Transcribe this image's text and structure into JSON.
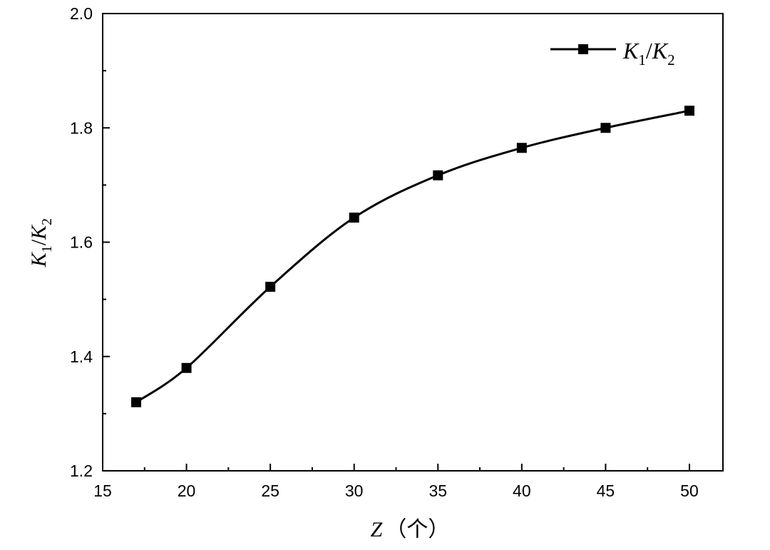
{
  "chart_data": {
    "type": "line",
    "x": [
      17,
      20,
      25,
      30,
      35,
      40,
      45,
      50
    ],
    "series": [
      {
        "name": "K1/K2",
        "values": [
          1.32,
          1.38,
          1.522,
          1.643,
          1.717,
          1.765,
          1.8,
          1.83
        ],
        "color": "#000000",
        "marker": "square"
      }
    ],
    "xlabel": {
      "var": "Z",
      "unit": "（个）"
    },
    "ylabel": {
      "base1": "K",
      "sub1": "1",
      "slash": "/",
      "base2": "K",
      "sub2": "2"
    },
    "legend": {
      "base1": "K",
      "sub1": "1",
      "slash": "/",
      "base2": "K",
      "sub2": "2",
      "position": "top-right"
    },
    "xlim": [
      15,
      52
    ],
    "ylim": [
      1.2,
      2.0
    ],
    "xticks": [
      "15",
      "20",
      "25",
      "30",
      "35",
      "40",
      "45",
      "50"
    ],
    "yticks": [
      "1.2",
      "1.4",
      "1.6",
      "1.8",
      "2.0"
    ],
    "grid": false,
    "smooth": true
  }
}
